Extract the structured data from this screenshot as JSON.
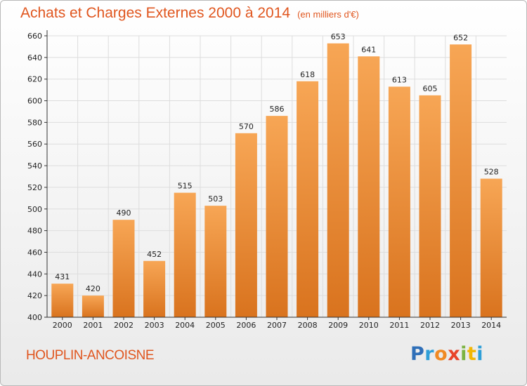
{
  "header": {
    "title": "Achats et Charges Externes 2000 à 2014",
    "unit": "(en milliers d'€)"
  },
  "footer": {
    "city": "HOUPLIN-ANCOISNE",
    "logo": {
      "text": "Proxiti",
      "letters": [
        {
          "ch": "P",
          "color": "#2f6fb8"
        },
        {
          "ch": "r",
          "color": "#2f9fd8"
        },
        {
          "ch": "o",
          "color": "#f08a24"
        },
        {
          "ch": "x",
          "color": "#e8442a"
        },
        {
          "ch": "i",
          "color": "#7cb342"
        },
        {
          "ch": "t",
          "color": "#f2b705"
        },
        {
          "ch": "i",
          "color": "#2f9fd8"
        }
      ]
    }
  },
  "chart_data": {
    "type": "bar",
    "title": "Achats et Charges Externes 2000 à 2014",
    "subtitle": "(en milliers d'€)",
    "xlabel": "",
    "ylabel": "",
    "categories": [
      "2000",
      "2001",
      "2002",
      "2003",
      "2004",
      "2005",
      "2006",
      "2007",
      "2008",
      "2009",
      "2010",
      "2011",
      "2012",
      "2013",
      "2014"
    ],
    "values": [
      431,
      420,
      490,
      452,
      515,
      503,
      570,
      586,
      618,
      653,
      641,
      613,
      605,
      652,
      528
    ],
    "ylim": [
      400,
      660
    ],
    "yticks": [
      400,
      420,
      440,
      460,
      480,
      500,
      520,
      540,
      560,
      580,
      600,
      620,
      640,
      660
    ],
    "grid": true,
    "legend": "none",
    "colors": {
      "bar_top": "#f7a655",
      "bar_bottom": "#d9731e",
      "axis": "#333333",
      "grid": "#dddddd"
    }
  }
}
